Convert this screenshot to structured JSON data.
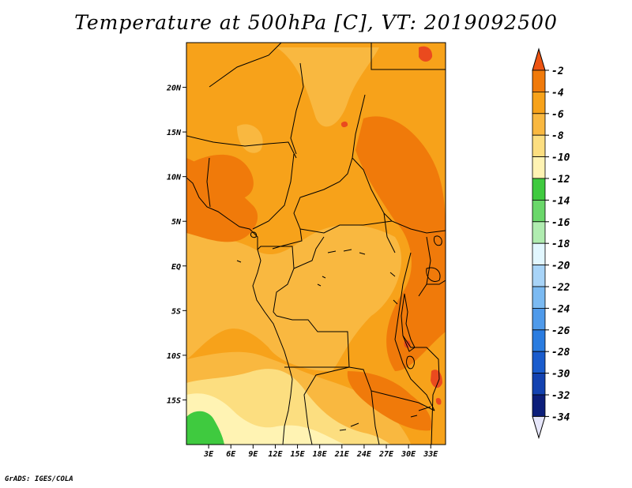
{
  "title": "Temperature at 500hPa [C], VT: 2019092500",
  "credit": "GrADS: IGES/COLA",
  "map": {
    "lon_range": [
      0,
      35
    ],
    "lat_range": [
      -20,
      25
    ],
    "lat_ticks": [
      {
        "label": "20N",
        "lat": 20
      },
      {
        "label": "15N",
        "lat": 15
      },
      {
        "label": "10N",
        "lat": 10
      },
      {
        "label": "5N",
        "lat": 5
      },
      {
        "label": "EQ",
        "lat": 0
      },
      {
        "label": "5S",
        "lat": -5
      },
      {
        "label": "10S",
        "lat": -10
      },
      {
        "label": "15S",
        "lat": -15
      }
    ],
    "lon_ticks": [
      {
        "label": "3E",
        "lon": 3
      },
      {
        "label": "6E",
        "lon": 6
      },
      {
        "label": "9E",
        "lon": 9
      },
      {
        "label": "12E",
        "lon": 12
      },
      {
        "label": "15E",
        "lon": 15
      },
      {
        "label": "18E",
        "lon": 18
      },
      {
        "label": "21E",
        "lon": 21
      },
      {
        "label": "24E",
        "lon": 24
      },
      {
        "label": "27E",
        "lon": 27
      },
      {
        "label": "30E",
        "lon": 30
      },
      {
        "label": "33E",
        "lon": 33
      }
    ],
    "colors": {
      "band_-4_-2": "#f07a0a",
      "band_-6_-4": "#f7a21a",
      "band_-8_-6": "#f9b840",
      "band_-10_-8": "#fcde80",
      "band_-12_-10": "#fff3b3",
      "band_-14_-12": "#3fca3f",
      "band_max": "#ea4a1e"
    }
  },
  "colorbar": {
    "labels": [
      "-2",
      "-4",
      "-6",
      "-8",
      "-10",
      "-12",
      "-14",
      "-16",
      "-18",
      "-20",
      "-22",
      "-24",
      "-26",
      "-28",
      "-30",
      "-32",
      "-34"
    ],
    "colors": [
      "#ed5412",
      "#f07a0a",
      "#f7a21a",
      "#f9b840",
      "#fcde80",
      "#fff3b3",
      "#3fca3f",
      "#6ad76a",
      "#b0ecb0",
      "#e2f7ff",
      "#a8d4f8",
      "#7bbaf2",
      "#4f9aea",
      "#2a7ce0",
      "#1a5ccd",
      "#1342b0",
      "#0c1e7a",
      "#e6e6fa"
    ],
    "top_color": "#ed5412",
    "bottom_color": "#e6e6fa"
  }
}
